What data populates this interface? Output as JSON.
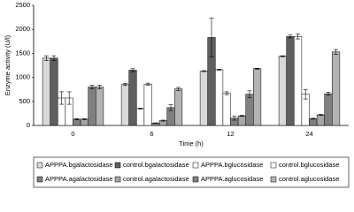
{
  "chart_data": {
    "type": "bar",
    "y_label": "Enzyme activity (U/l)",
    "x_label": "Time (h)",
    "categories": [
      "0",
      "6",
      "12",
      "24"
    ],
    "ylim": [
      0,
      2500
    ],
    "yticks": [
      0,
      500,
      1000,
      1500,
      2000,
      2500
    ],
    "series": [
      {
        "name": "APPPA.bgalactosidase",
        "color": "#d9d9d9",
        "values": [
          1400,
          850,
          1130,
          1440
        ],
        "errors": [
          50,
          20,
          10,
          10
        ]
      },
      {
        "name": "control.bgalactosidase",
        "color": "#5f5f5f",
        "values": [
          1400,
          1150,
          1830,
          1850
        ],
        "errors": [
          50,
          30,
          400,
          30
        ]
      },
      {
        "name": "APPPA.bglucosidase",
        "color": "#ffffff",
        "values": [
          570,
          350,
          1160,
          1850
        ],
        "errors": [
          130,
          10,
          10,
          50
        ]
      },
      {
        "name": "control.bglucosidase",
        "color": "#ffffff",
        "values": [
          570,
          860,
          670,
          650
        ],
        "errors": [
          130,
          20,
          30,
          100
        ]
      },
      {
        "name": "APPPA.agalactosidase",
        "color": "#7f7f7f",
        "values": [
          130,
          50,
          150,
          140
        ],
        "errors": [
          10,
          5,
          40,
          10
        ]
      },
      {
        "name": "control.agalactosidase",
        "color": "#a6a6a6",
        "values": [
          130,
          100,
          200,
          220
        ],
        "errors": [
          10,
          10,
          10,
          10
        ]
      },
      {
        "name": "APPPA.aglucosidase",
        "color": "#808080",
        "values": [
          800,
          370,
          650,
          660
        ],
        "errors": [
          40,
          60,
          70,
          30
        ]
      },
      {
        "name": "control.aglucosidase",
        "color": "#b3b3b3",
        "values": [
          800,
          760,
          1180,
          1530
        ],
        "errors": [
          40,
          30,
          10,
          50
        ]
      }
    ]
  }
}
